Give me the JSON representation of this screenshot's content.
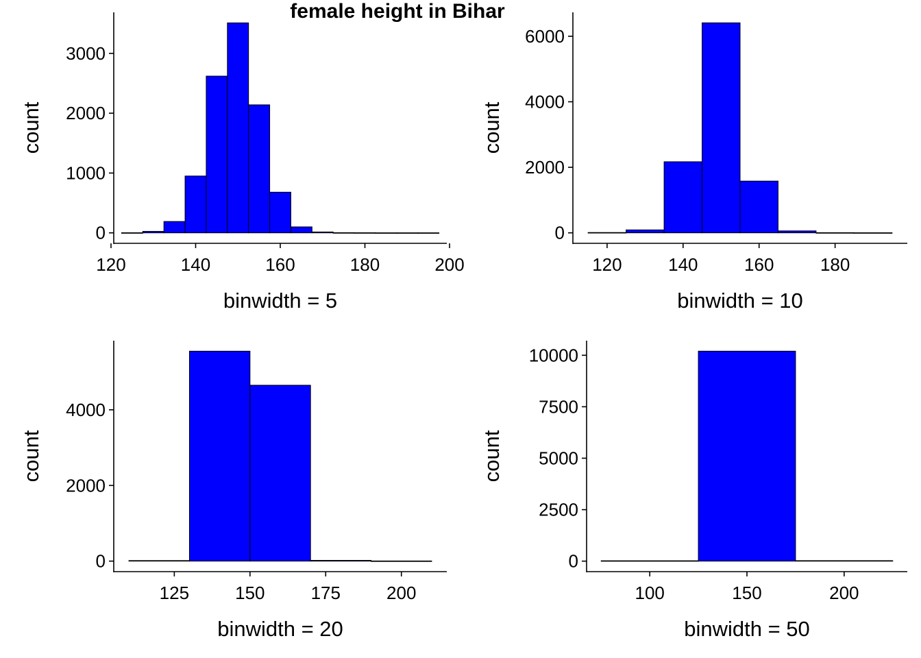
{
  "title": "female height in Bihar",
  "colors": {
    "bar_fill": "#0000ff",
    "bar_edge": "#000000",
    "axis": "#000000",
    "background": "#ffffff"
  },
  "chart_data": [
    {
      "type": "bar",
      "title": "",
      "xlabel": "binwidth = 5",
      "ylabel": "count",
      "binwidth": 5,
      "bins": [
        {
          "from": 122.5,
          "to": 127.5,
          "count": 2
        },
        {
          "from": 127.5,
          "to": 132.5,
          "count": 25
        },
        {
          "from": 132.5,
          "to": 137.5,
          "count": 190
        },
        {
          "from": 137.5,
          "to": 142.5,
          "count": 950
        },
        {
          "from": 142.5,
          "to": 147.5,
          "count": 2620
        },
        {
          "from": 147.5,
          "to": 152.5,
          "count": 3510
        },
        {
          "from": 152.5,
          "to": 157.5,
          "count": 2140
        },
        {
          "from": 157.5,
          "to": 162.5,
          "count": 680
        },
        {
          "from": 162.5,
          "to": 167.5,
          "count": 100
        },
        {
          "from": 167.5,
          "to": 172.5,
          "count": 15
        },
        {
          "from": 172.5,
          "to": 177.5,
          "count": 3
        },
        {
          "from": 177.5,
          "to": 182.5,
          "count": 2
        },
        {
          "from": 182.5,
          "to": 187.5,
          "count": 1
        },
        {
          "from": 187.5,
          "to": 192.5,
          "count": 1
        },
        {
          "from": 192.5,
          "to": 197.5,
          "count": 1
        }
      ],
      "xlim": [
        120.65,
        199.35
      ],
      "ylim": [
        -175,
        3686
      ],
      "xticks": [
        120,
        140,
        160,
        180,
        200
      ],
      "yticks": [
        0,
        1000,
        2000,
        3000
      ],
      "grid": false
    },
    {
      "type": "bar",
      "title": "",
      "xlabel": "binwidth = 10",
      "ylabel": "count",
      "binwidth": 10,
      "bins": [
        {
          "from": 115,
          "to": 125,
          "count": 10
        },
        {
          "from": 125,
          "to": 135,
          "count": 90
        },
        {
          "from": 135,
          "to": 145,
          "count": 2170
        },
        {
          "from": 145,
          "to": 155,
          "count": 6410
        },
        {
          "from": 155,
          "to": 165,
          "count": 1580
        },
        {
          "from": 165,
          "to": 175,
          "count": 60
        },
        {
          "from": 175,
          "to": 185,
          "count": 5
        },
        {
          "from": 185,
          "to": 195,
          "count": 3
        }
      ],
      "xlim": [
        111,
        199
      ],
      "ylim": [
        -320,
        6730
      ],
      "xticks": [
        120,
        140,
        160,
        180
      ],
      "yticks": [
        0,
        2000,
        4000,
        6000
      ],
      "grid": false
    },
    {
      "type": "bar",
      "title": "",
      "xlabel": "binwidth = 20",
      "ylabel": "count",
      "binwidth": 20,
      "bins": [
        {
          "from": 110,
          "to": 130,
          "count": 15
        },
        {
          "from": 130,
          "to": 150,
          "count": 5550
        },
        {
          "from": 150,
          "to": 170,
          "count": 4650
        },
        {
          "from": 170,
          "to": 190,
          "count": 20
        },
        {
          "from": 190,
          "to": 210,
          "count": 5
        }
      ],
      "xlim": [
        105,
        215
      ],
      "ylim": [
        -278,
        5828
      ],
      "xticks": [
        125,
        150,
        175,
        200
      ],
      "yticks": [
        0,
        2000,
        4000
      ],
      "grid": false
    },
    {
      "type": "bar",
      "title": "",
      "xlabel": "binwidth = 50",
      "ylabel": "count",
      "binwidth": 50,
      "bins": [
        {
          "from": 75,
          "to": 125,
          "count": 20
        },
        {
          "from": 125,
          "to": 175,
          "count": 10200
        },
        {
          "from": 175,
          "to": 225,
          "count": 25
        }
      ],
      "xlim": [
        67.5,
        232.5
      ],
      "ylim": [
        -510,
        10710
      ],
      "xticks": [
        100,
        150,
        200
      ],
      "yticks": [
        0,
        2500,
        5000,
        7500,
        10000
      ],
      "grid": false
    }
  ]
}
